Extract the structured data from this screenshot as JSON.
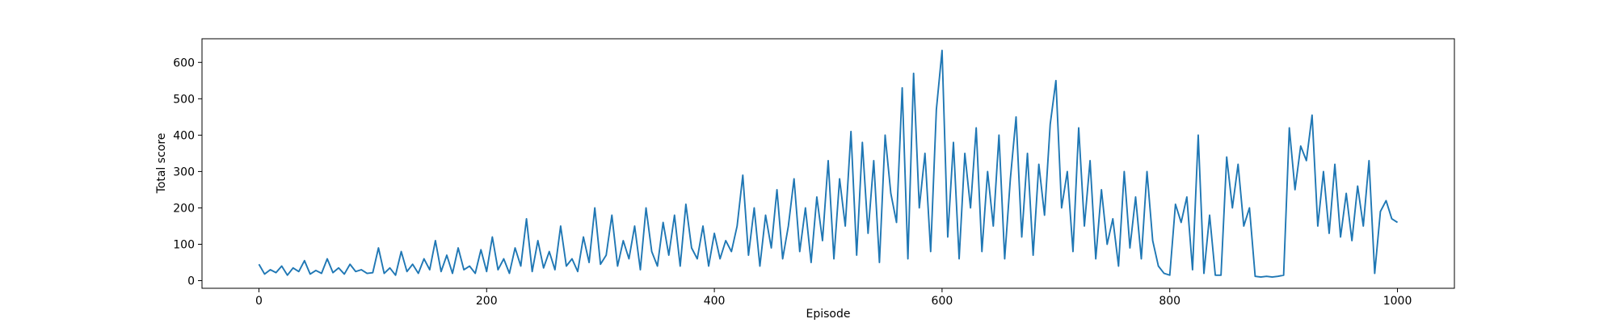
{
  "chart_data": {
    "type": "line",
    "xlabel": "Episode",
    "ylabel": "Total score",
    "x": [
      0,
      5,
      10,
      15,
      20,
      25,
      30,
      35,
      40,
      45,
      50,
      55,
      60,
      65,
      70,
      75,
      80,
      85,
      90,
      95,
      100,
      105,
      110,
      115,
      120,
      125,
      130,
      135,
      140,
      145,
      150,
      155,
      160,
      165,
      170,
      175,
      180,
      185,
      190,
      195,
      200,
      205,
      210,
      215,
      220,
      225,
      230,
      235,
      240,
      245,
      250,
      255,
      260,
      265,
      270,
      275,
      280,
      285,
      290,
      295,
      300,
      305,
      310,
      315,
      320,
      325,
      330,
      335,
      340,
      345,
      350,
      355,
      360,
      365,
      370,
      375,
      380,
      385,
      390,
      395,
      400,
      405,
      410,
      415,
      420,
      425,
      430,
      435,
      440,
      445,
      450,
      455,
      460,
      465,
      470,
      475,
      480,
      485,
      490,
      495,
      500,
      505,
      510,
      515,
      520,
      525,
      530,
      535,
      540,
      545,
      550,
      555,
      560,
      565,
      570,
      575,
      580,
      585,
      590,
      595,
      600,
      605,
      610,
      615,
      620,
      625,
      630,
      635,
      640,
      645,
      650,
      655,
      660,
      665,
      670,
      675,
      680,
      685,
      690,
      695,
      700,
      705,
      710,
      715,
      720,
      725,
      730,
      735,
      740,
      745,
      750,
      755,
      760,
      765,
      770,
      775,
      780,
      785,
      790,
      795,
      800,
      805,
      810,
      815,
      820,
      825,
      830,
      835,
      840,
      845,
      850,
      855,
      860,
      865,
      870,
      875,
      880,
      885,
      890,
      895,
      900,
      905,
      910,
      915,
      920,
      925,
      930,
      935,
      940,
      945,
      950,
      955,
      960,
      965,
      970,
      975,
      980,
      985,
      990,
      995,
      1000
    ],
    "series": [
      {
        "name": "Total score",
        "color": "#1f77b4",
        "values": [
          45,
          18,
          30,
          22,
          40,
          15,
          35,
          25,
          55,
          18,
          28,
          20,
          60,
          22,
          35,
          18,
          45,
          25,
          30,
          20,
          22,
          90,
          20,
          35,
          15,
          80,
          25,
          45,
          20,
          60,
          30,
          110,
          25,
          70,
          20,
          90,
          30,
          40,
          20,
          85,
          25,
          120,
          30,
          60,
          20,
          90,
          40,
          170,
          25,
          110,
          35,
          80,
          30,
          150,
          40,
          60,
          25,
          120,
          50,
          200,
          45,
          70,
          180,
          40,
          110,
          60,
          150,
          30,
          200,
          80,
          40,
          160,
          70,
          180,
          40,
          210,
          90,
          60,
          150,
          40,
          130,
          60,
          110,
          80,
          150,
          290,
          70,
          200,
          40,
          180,
          90,
          250,
          60,
          150,
          280,
          80,
          200,
          50,
          230,
          110,
          330,
          60,
          280,
          150,
          410,
          70,
          380,
          130,
          330,
          50,
          400,
          240,
          160,
          530,
          60,
          570,
          200,
          350,
          80,
          470,
          633,
          120,
          380,
          60,
          350,
          200,
          420,
          80,
          300,
          150,
          400,
          60,
          280,
          450,
          120,
          350,
          70,
          320,
          180,
          430,
          550,
          200,
          300,
          80,
          420,
          150,
          330,
          60,
          250,
          100,
          170,
          40,
          300,
          90,
          230,
          60,
          300,
          110,
          40,
          20,
          15,
          210,
          160,
          230,
          30,
          400,
          20,
          180,
          15,
          15,
          340,
          200,
          320,
          150,
          200,
          12,
          10,
          12,
          10,
          12,
          15,
          420,
          250,
          370,
          330,
          455,
          150,
          300,
          130,
          320,
          120,
          240,
          110,
          260,
          150,
          330,
          20,
          190,
          220,
          170,
          160
        ]
      }
    ],
    "xlim": [
      -50,
      1050
    ],
    "ylim": [
      -21,
      665
    ],
    "xticks": [
      0,
      200,
      400,
      600,
      800,
      1000
    ],
    "yticks": [
      0,
      100,
      200,
      300,
      400,
      500,
      600
    ],
    "grid": false
  }
}
